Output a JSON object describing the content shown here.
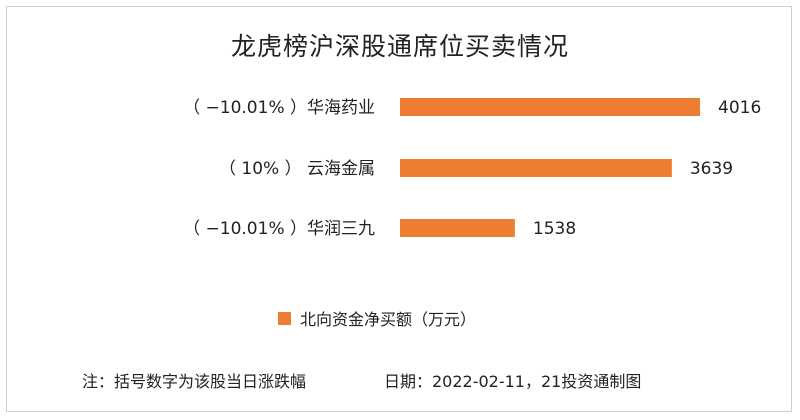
{
  "chart_data": {
    "type": "bar",
    "orientation": "horizontal",
    "title": "龙虎榜沪深股通席位买卖情况",
    "categories": [
      "华海药业",
      "云海金属",
      "华润三九"
    ],
    "category_labels": [
      "（ −10.01% ）华海药业",
      "（ 10% ）    云海金属",
      "（ −10.01% ）华润三九"
    ],
    "pct_change": [
      "−10.01%",
      "10%",
      "−10.01%"
    ],
    "series": [
      {
        "name": "北向资金净买额（万元）",
        "values": [
          4016,
          3639,
          1538
        ],
        "color": "#ed7d31"
      }
    ],
    "data_labels": [
      "4016",
      "3639",
      "1538"
    ],
    "xlim": [
      0,
      4016
    ],
    "grid": false,
    "axes_visible": false,
    "legend_position": "bottom"
  },
  "legend": {
    "label": "北向资金净买额（万元）",
    "color": "#ed7d31"
  },
  "footer": {
    "note": "注：括号数字为该股当日涨跌幅",
    "date_source": "日期：2022-02-11，21投资通制图"
  }
}
